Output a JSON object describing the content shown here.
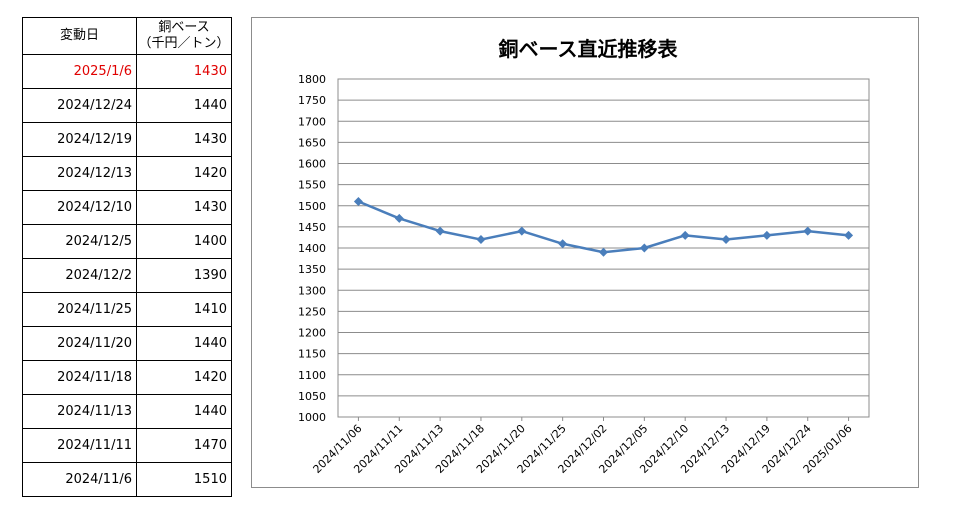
{
  "table": {
    "headers": {
      "date": "変動日",
      "price_line1": "銅ベース",
      "price_line2": "（千円／トン）"
    },
    "rows": [
      {
        "date": "2025/1/6",
        "price": "1430"
      },
      {
        "date": "2024/12/24",
        "price": "1440"
      },
      {
        "date": "2024/12/19",
        "price": "1430"
      },
      {
        "date": "2024/12/13",
        "price": "1420"
      },
      {
        "date": "2024/12/10",
        "price": "1430"
      },
      {
        "date": "2024/12/5",
        "price": "1400"
      },
      {
        "date": "2024/12/2",
        "price": "1390"
      },
      {
        "date": "2024/11/25",
        "price": "1410"
      },
      {
        "date": "2024/11/20",
        "price": "1440"
      },
      {
        "date": "2024/11/18",
        "price": "1420"
      },
      {
        "date": "2024/11/13",
        "price": "1440"
      },
      {
        "date": "2024/11/11",
        "price": "1470"
      },
      {
        "date": "2024/11/6",
        "price": "1510"
      }
    ],
    "latest_color": "#e00000"
  },
  "chart_data": {
    "type": "line",
    "title": "銅ベース直近推移表",
    "xlabel": "",
    "ylabel": "",
    "ylim": [
      1000,
      1800
    ],
    "ytick_step": 50,
    "grid": true,
    "categories": [
      "2024/11/06",
      "2024/11/11",
      "2024/11/13",
      "2024/11/18",
      "2024/11/20",
      "2024/11/25",
      "2024/12/02",
      "2024/12/05",
      "2024/12/10",
      "2024/12/13",
      "2024/12/19",
      "2024/12/24",
      "2025/01/06"
    ],
    "series": [
      {
        "values": [
          1510,
          1470,
          1440,
          1420,
          1440,
          1410,
          1390,
          1400,
          1430,
          1420,
          1430,
          1440,
          1430
        ],
        "color": "#4a7ebb"
      }
    ]
  }
}
